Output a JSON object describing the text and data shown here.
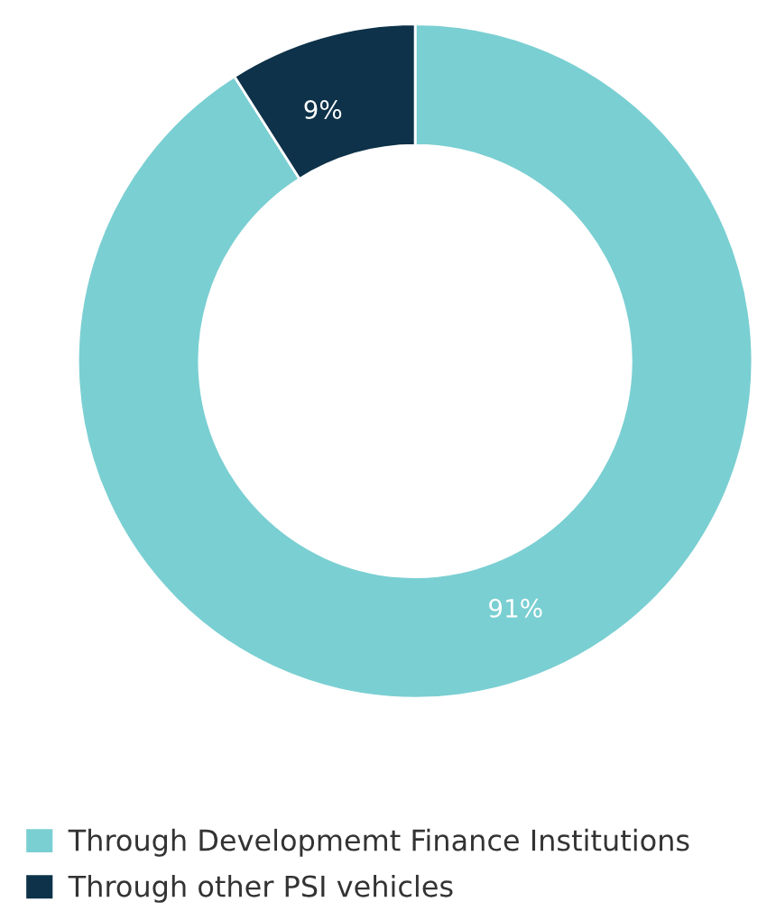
{
  "chart_data": {
    "type": "donut",
    "categories": [
      "Through Developmemt Finance Institutions",
      "Through other PSI vehicles"
    ],
    "values": [
      91,
      9
    ],
    "colors": [
      "#7acfd2",
      "#0d3249"
    ],
    "value_labels": [
      "91%",
      "9%"
    ],
    "legend": "bottom"
  }
}
